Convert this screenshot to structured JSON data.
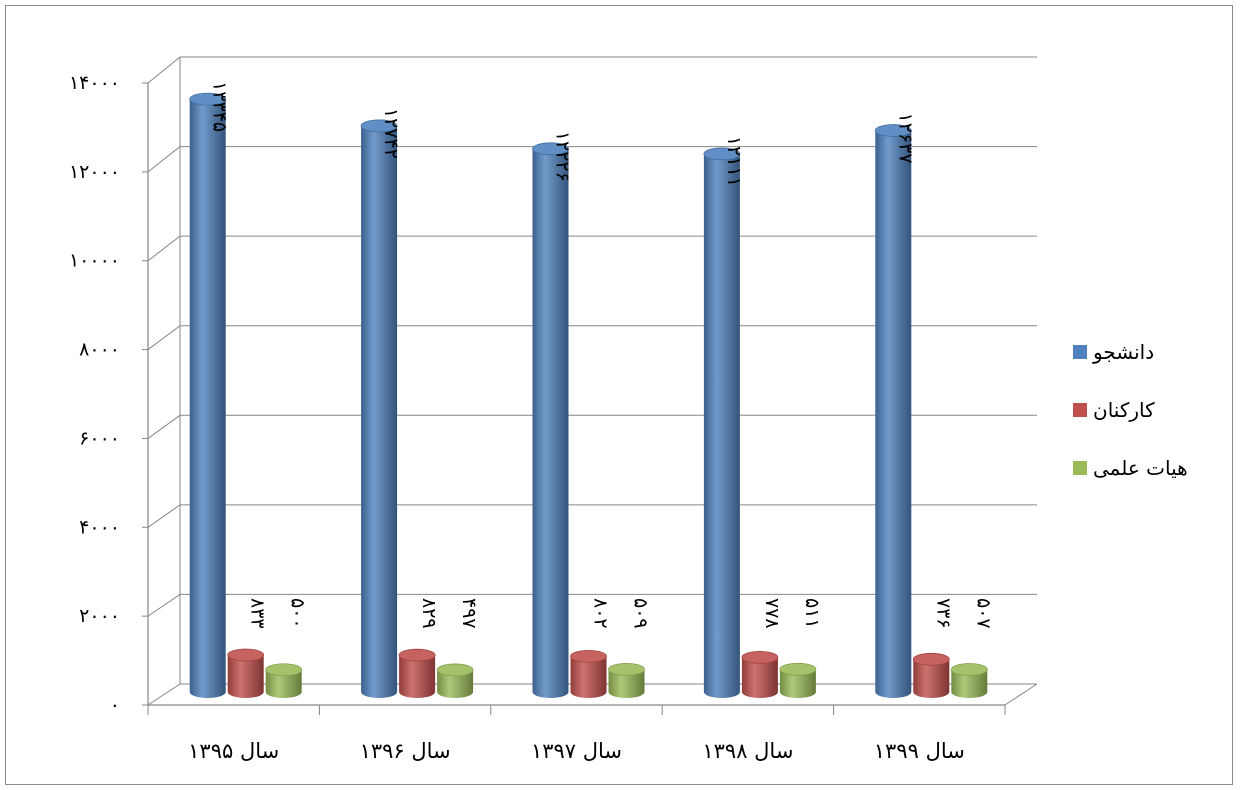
{
  "chart_data": {
    "type": "bar",
    "categories": [
      "سال ۱۳۹۵",
      "سال ۱۳۹۶",
      "سال ۱۳۹۷",
      "سال ۱۳۹۸",
      "سال ۱۳۹۹"
    ],
    "series": [
      {
        "name": "دانشجو",
        "values": [
          13345,
          12742,
          12226,
          12111,
          12637
        ],
        "labels": [
          "۱۳۳۴۵",
          "۱۲۷۴۲",
          "۱۲۲۲۶",
          "۱۲۱۱۱",
          "۱۲۶۳۷"
        ],
        "color": "#4F81BD"
      },
      {
        "name": "کارکنان",
        "values": [
          833,
          829,
          802,
          778,
          736
        ],
        "labels": [
          "۸۳۳",
          "۸۲۹",
          "۸۰۲",
          "۷۷۸",
          "۷۳۶"
        ],
        "color": "#C0504D"
      },
      {
        "name": "هیات علمی",
        "values": [
          500,
          497,
          509,
          511,
          507
        ],
        "labels": [
          "۵۰۰",
          "۴۹۷",
          "۵۰۹",
          "۵۱۱",
          "۵۰۷"
        ],
        "color": "#9BBB59"
      }
    ],
    "yticks": [
      0,
      2000,
      4000,
      6000,
      8000,
      10000,
      12000,
      14000
    ],
    "ytick_labels": [
      "۰",
      "۲۰۰۰",
      "۴۰۰۰",
      "۶۰۰۰",
      "۸۰۰۰",
      "۱۰۰۰۰",
      "۱۲۰۰۰",
      "۱۴۰۰۰"
    ],
    "ylim": [
      0,
      14000
    ],
    "grid": true,
    "legend_position": "right",
    "style": "3d-cylinder"
  }
}
